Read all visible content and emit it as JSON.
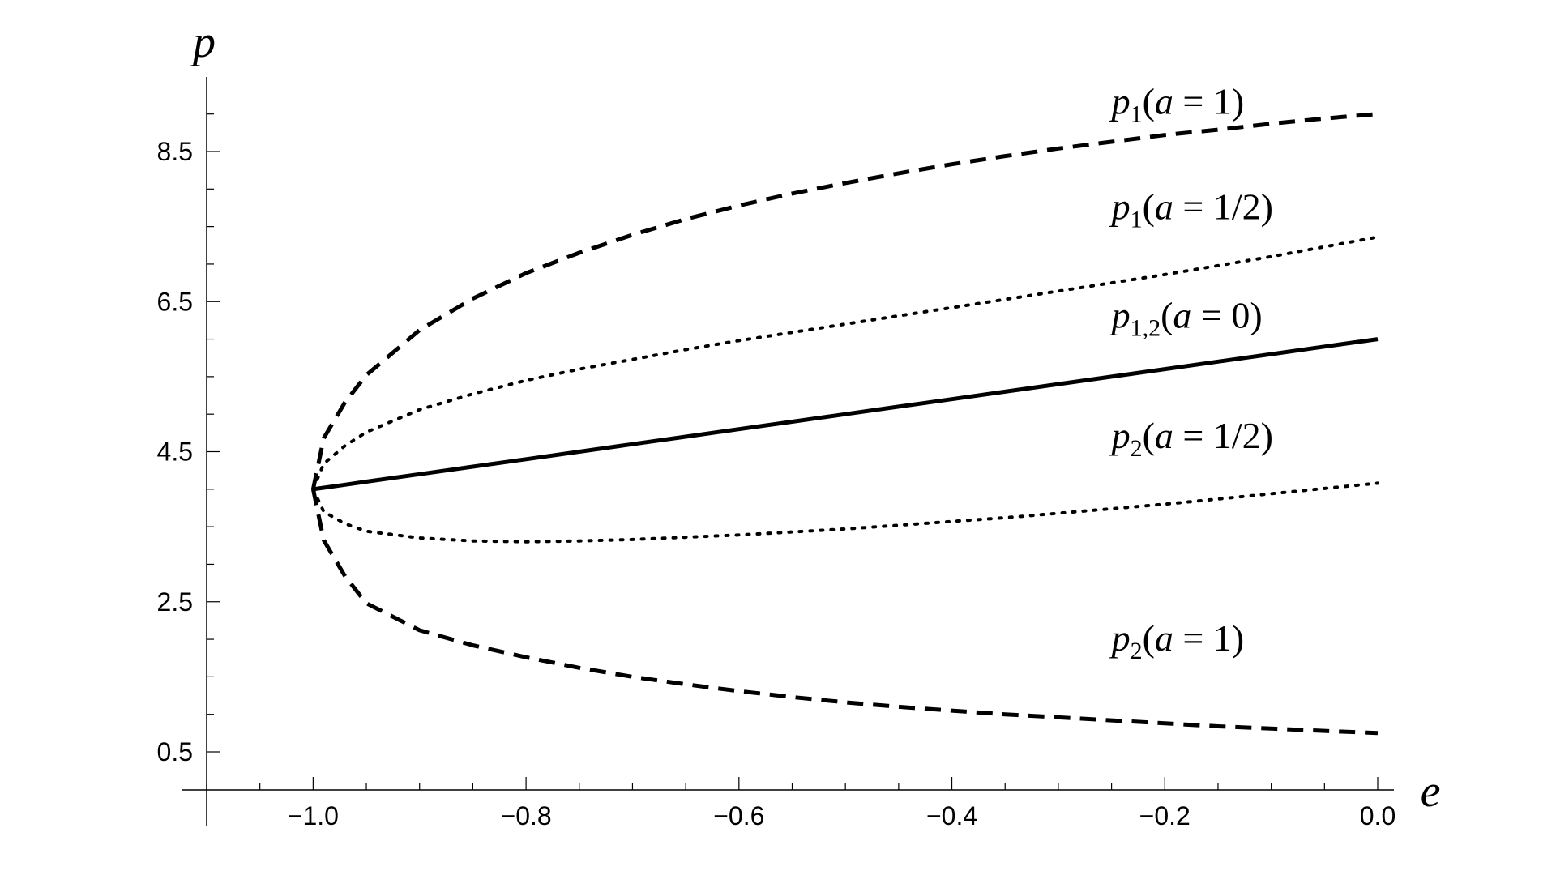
{
  "chart_data": {
    "type": "line",
    "title": "",
    "xlabel": "e",
    "ylabel": "p",
    "xlim": [
      -1.1,
      0.0
    ],
    "ylim": [
      0.0,
      9.5
    ],
    "grid": false,
    "legend": "none",
    "x_major_ticks": [
      -1.0,
      -0.8,
      -0.6,
      -0.4,
      -0.2,
      0.0
    ],
    "x_tick_labels": [
      "−1.0",
      "−0.8",
      "−0.6",
      "−0.4",
      "−0.2",
      "0.0"
    ],
    "y_major_ticks": [
      0.5,
      2.5,
      4.5,
      6.5,
      8.5
    ],
    "y_tick_labels": [
      "0.5",
      "2.5",
      "4.5",
      "6.5",
      "8.5"
    ],
    "x": [
      -1.0,
      -0.99,
      -0.97,
      -0.95,
      -0.9,
      -0.85,
      -0.8,
      -0.75,
      -0.7,
      -0.65,
      -0.6,
      -0.55,
      -0.5,
      -0.45,
      -0.4,
      -0.35,
      -0.3,
      -0.25,
      -0.2,
      -0.15,
      -0.1,
      -0.05,
      0.0
    ],
    "series": [
      {
        "label_parts": [
          {
            "t": "p",
            "style": "it"
          },
          {
            "t": "1",
            "style": "sub"
          },
          {
            "t": "(",
            "style": "n"
          },
          {
            "t": "a",
            "style": "it"
          },
          {
            "t": " = 1)",
            "style": "n"
          }
        ],
        "dash": "dashed",
        "label_pos": [
          -0.25,
          9.0
        ],
        "values": [
          4.0,
          4.68,
          5.16,
          5.52,
          6.12,
          6.54,
          6.88,
          7.15,
          7.39,
          7.6,
          7.78,
          7.94,
          8.08,
          8.21,
          8.33,
          8.44,
          8.54,
          8.63,
          8.72,
          8.79,
          8.87,
          8.94,
          9.0
        ]
      },
      {
        "label_parts": [
          {
            "t": "p",
            "style": "it"
          },
          {
            "t": "1",
            "style": "sub"
          },
          {
            "t": "(",
            "style": "n"
          },
          {
            "t": "a",
            "style": "it"
          },
          {
            "t": " = 1/2)",
            "style": "n"
          }
        ],
        "dash": "dotted",
        "label_pos": [
          -0.25,
          7.6
        ],
        "values": [
          4.0,
          4.34,
          4.58,
          4.76,
          5.06,
          5.27,
          5.45,
          5.6,
          5.73,
          5.86,
          5.98,
          6.09,
          6.2,
          6.31,
          6.42,
          6.53,
          6.64,
          6.75,
          6.86,
          6.98,
          7.1,
          7.23,
          7.36
        ]
      },
      {
        "label_parts": [
          {
            "t": "p",
            "style": "it"
          },
          {
            "t": "1,2",
            "style": "sub"
          },
          {
            "t": "(",
            "style": "n"
          },
          {
            "t": "a",
            "style": "it"
          },
          {
            "t": " = 0)",
            "style": "n"
          }
        ],
        "dash": "solid",
        "label_pos": [
          -0.25,
          6.15
        ],
        "values": [
          4.0,
          4.02,
          4.06,
          4.1,
          4.2,
          4.3,
          4.4,
          4.5,
          4.6,
          4.7,
          4.8,
          4.9,
          5.0,
          5.1,
          5.2,
          5.3,
          5.4,
          5.5,
          5.6,
          5.7,
          5.8,
          5.9,
          6.0
        ]
      },
      {
        "label_parts": [
          {
            "t": "p",
            "style": "it"
          },
          {
            "t": "2",
            "style": "sub"
          },
          {
            "t": "(",
            "style": "n"
          },
          {
            "t": "a",
            "style": "it"
          },
          {
            "t": " = 1/2)",
            "style": "n"
          }
        ],
        "dash": "dotted",
        "label_pos": [
          -0.25,
          4.55
        ],
        "values": [
          4.0,
          3.7,
          3.54,
          3.44,
          3.35,
          3.31,
          3.3,
          3.31,
          3.33,
          3.36,
          3.39,
          3.43,
          3.47,
          3.52,
          3.57,
          3.62,
          3.68,
          3.74,
          3.8,
          3.87,
          3.94,
          4.01,
          4.08
        ]
      },
      {
        "label_parts": [
          {
            "t": "p",
            "style": "it"
          },
          {
            "t": "2",
            "style": "sub"
          },
          {
            "t": "(",
            "style": "n"
          },
          {
            "t": "a",
            "style": "it"
          },
          {
            "t": " = 1)",
            "style": "n"
          }
        ],
        "dash": "dashed",
        "label_pos": [
          -0.25,
          1.85
        ],
        "values": [
          4.0,
          3.32,
          2.84,
          2.48,
          2.12,
          1.92,
          1.76,
          1.62,
          1.5,
          1.4,
          1.31,
          1.23,
          1.16,
          1.1,
          1.05,
          1.0,
          0.96,
          0.92,
          0.88,
          0.84,
          0.81,
          0.78,
          0.75
        ]
      }
    ]
  }
}
